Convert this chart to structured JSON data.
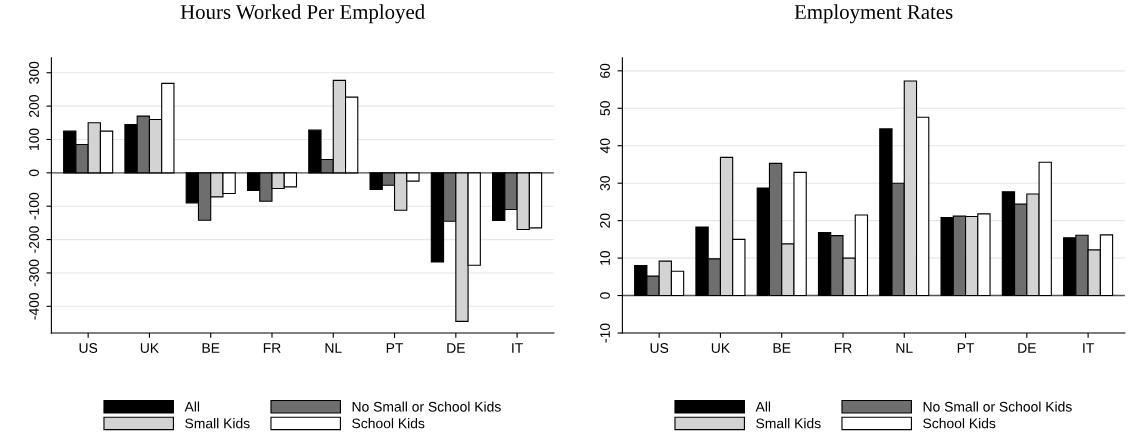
{
  "chart_data": [
    {
      "type": "bar",
      "title": "Hours Worked Per Employed",
      "categories": [
        "US",
        "UK",
        "BE",
        "FR",
        "NL",
        "PT",
        "DE",
        "IT"
      ],
      "series": [
        {
          "name": "All",
          "color": "#000000",
          "values": [
            125,
            145,
            -90,
            -53,
            128,
            -50,
            -267,
            -143
          ]
        },
        {
          "name": "No Small or School Kids",
          "color": "#6e6e6e",
          "values": [
            85,
            170,
            -142,
            -85,
            40,
            -37,
            -145,
            -110
          ]
        },
        {
          "name": "Small Kids",
          "color": "#d3d3d3",
          "values": [
            150,
            160,
            -72,
            -47,
            277,
            -112,
            -445,
            -170
          ]
        },
        {
          "name": "School Kids",
          "color": "#ffffff",
          "values": [
            125,
            268,
            -62,
            -42,
            227,
            -25,
            -277,
            -165
          ]
        }
      ],
      "ylim": [
        -480,
        345
      ],
      "yticks": [
        -400,
        -300,
        -200,
        -100,
        0,
        100,
        200,
        300
      ],
      "grid": "y",
      "legend": "bottom",
      "ref_lines": [
        {
          "axis": "y",
          "value": 0,
          "color": "#555555"
        }
      ]
    },
    {
      "type": "bar",
      "title": "Employment Rates",
      "categories": [
        "US",
        "UK",
        "BE",
        "FR",
        "NL",
        "PT",
        "DE",
        "IT"
      ],
      "series": [
        {
          "name": "All",
          "color": "#000000",
          "values": [
            8,
            18.3,
            28.7,
            16.8,
            44.5,
            20.8,
            27.7,
            15.4
          ]
        },
        {
          "name": "No Small or School Kids",
          "color": "#6e6e6e",
          "values": [
            5.2,
            9.8,
            35.3,
            16,
            30,
            21.2,
            24.4,
            16.1
          ]
        },
        {
          "name": "Small Kids",
          "color": "#d3d3d3",
          "values": [
            9.2,
            36.9,
            13.8,
            10,
            57.3,
            21.1,
            27.1,
            12.2
          ]
        },
        {
          "name": "School Kids",
          "color": "#ffffff",
          "values": [
            6.5,
            15,
            32.9,
            21.5,
            47.6,
            21.8,
            35.6,
            16.2
          ]
        }
      ],
      "ylim": [
        -10,
        63.5
      ],
      "yticks": [
        -10,
        0,
        10,
        20,
        30,
        40,
        50,
        60
      ],
      "grid": "y",
      "legend": "bottom",
      "ref_lines": [
        {
          "axis": "y",
          "value": 0,
          "color": "#555555"
        }
      ]
    }
  ]
}
